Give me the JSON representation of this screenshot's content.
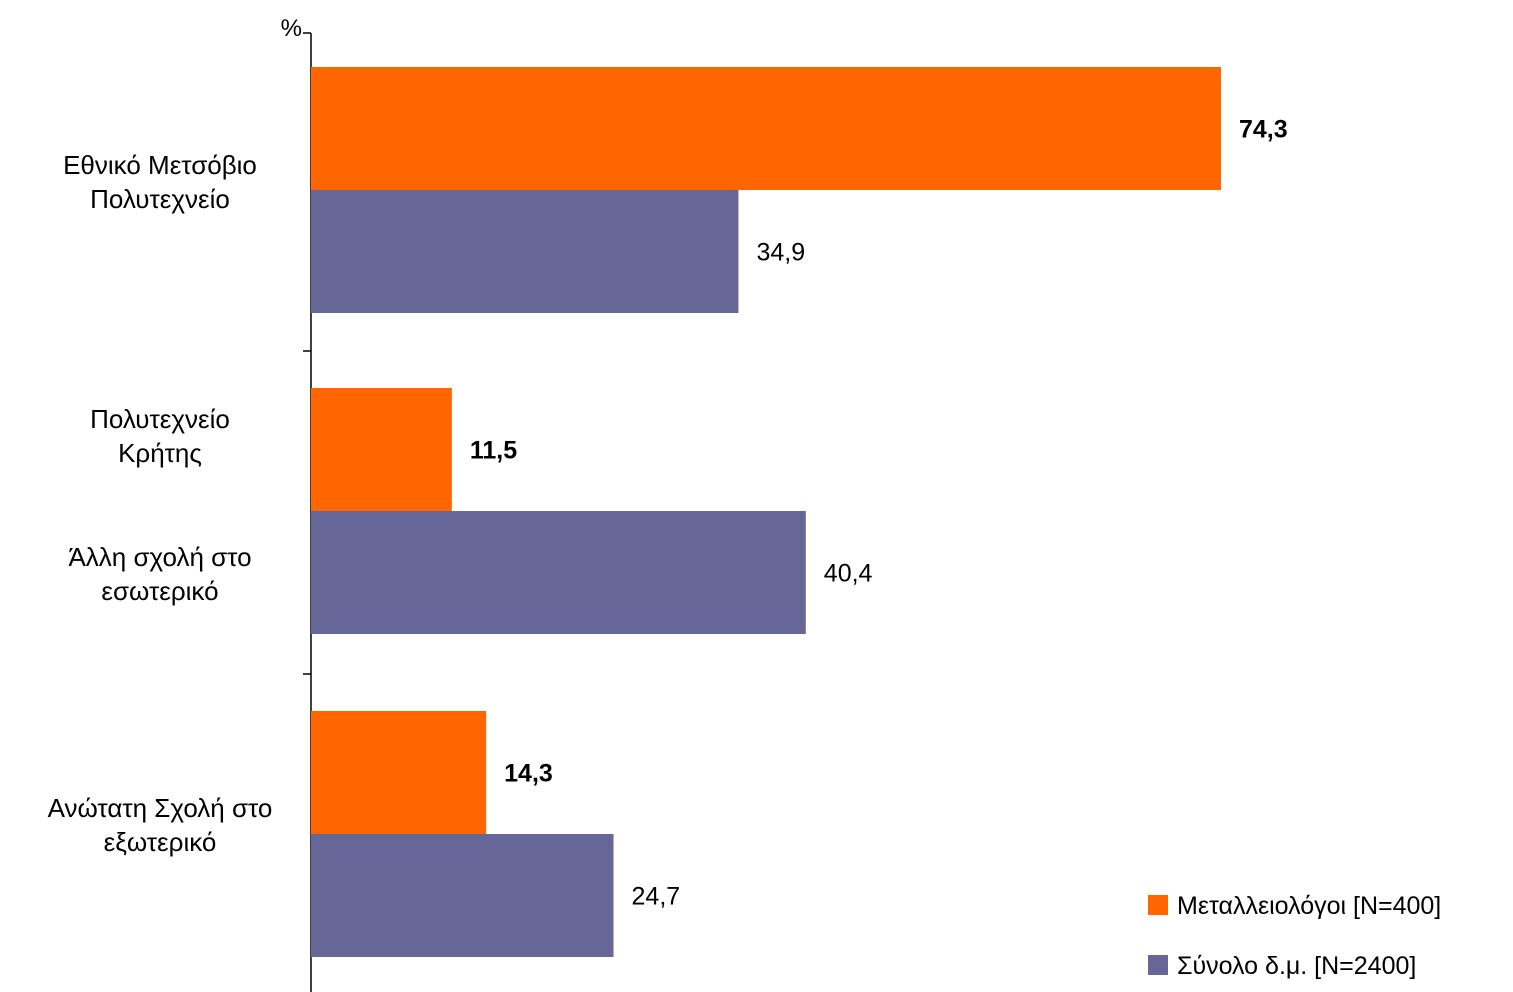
{
  "chart_data": {
    "type": "bar",
    "orientation": "horizontal",
    "unit_label": "%",
    "categories": [
      [
        "Εθνικό Μετσόβιο",
        "Πολυτεχνείο"
      ],
      [
        "Πολυτεχνείο",
        "Κρήτης"
      ],
      [
        "Ανώτατη Σχολή στο",
        "εξωτερικό"
      ]
    ],
    "extra_category_label": [
      "Άλλη σχολή στο",
      "εσωτερικό"
    ],
    "series": [
      {
        "name": "Μεταλλειολόγοι [N=400]",
        "color": "#ff6600",
        "values": [
          74.3,
          11.5,
          14.3
        ],
        "labels": [
          "74,3",
          "11,5",
          "14,3"
        ],
        "label_bold": true
      },
      {
        "name": "Σύνολο δ.μ. [N=2400]",
        "color": "#666699",
        "values": [
          34.9,
          40.4,
          24.7
        ],
        "labels": [
          "34,9",
          "40,4",
          "24,7"
        ],
        "label_bold": false
      }
    ],
    "xlim": [
      0,
      100
    ],
    "grid": false,
    "legend_position": "bottom-right"
  }
}
